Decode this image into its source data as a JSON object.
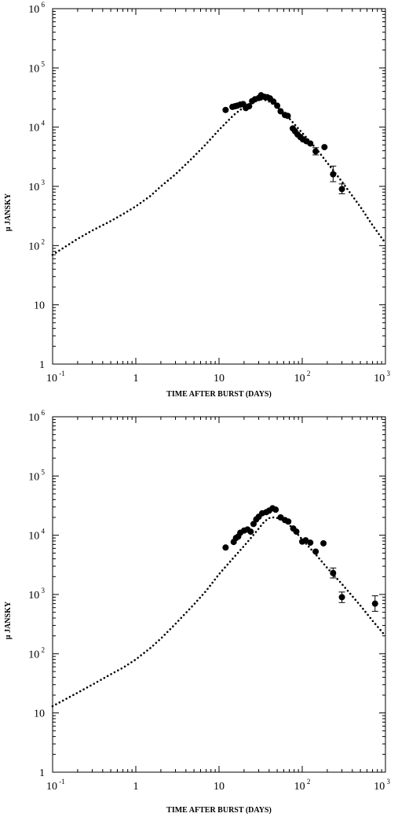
{
  "chart_data": [
    {
      "type": "scatter",
      "xlabel": "TIME AFTER BURST (DAYS)",
      "ylabel": "μ JANSKY",
      "xscale": "log",
      "yscale": "log",
      "xlim": [
        0.1,
        1000
      ],
      "ylim": [
        1,
        1000000
      ],
      "x_ticks": [
        {
          "value": 0.1,
          "base": "10",
          "exp": "-1"
        },
        {
          "value": 1,
          "base": "1",
          "exp": ""
        },
        {
          "value": 10,
          "base": "10",
          "exp": ""
        },
        {
          "value": 100,
          "base": "10",
          "exp": "2"
        },
        {
          "value": 1000,
          "base": "10",
          "exp": "3"
        }
      ],
      "y_ticks": [
        {
          "value": 1,
          "base": "1",
          "exp": ""
        },
        {
          "value": 10,
          "base": "10",
          "exp": ""
        },
        {
          "value": 100,
          "base": "10",
          "exp": "2"
        },
        {
          "value": 1000,
          "base": "10",
          "exp": "3"
        },
        {
          "value": 10000,
          "base": "10",
          "exp": "4"
        },
        {
          "value": 100000,
          "base": "10",
          "exp": "5"
        },
        {
          "value": 1000000,
          "base": "10",
          "exp": "6"
        }
      ],
      "model": {
        "style": "dotted",
        "points": [
          [
            0.1,
            70
          ],
          [
            0.2,
            130
          ],
          [
            0.3,
            180
          ],
          [
            0.5,
            260
          ],
          [
            0.7,
            340
          ],
          [
            1,
            460
          ],
          [
            1.5,
            690
          ],
          [
            2,
            1000
          ],
          [
            3,
            1600
          ],
          [
            5,
            3200
          ],
          [
            7,
            5200
          ],
          [
            10,
            9000
          ],
          [
            15,
            16000
          ],
          [
            20,
            22000
          ],
          [
            25,
            27000
          ],
          [
            30,
            29500
          ],
          [
            35,
            29000
          ],
          [
            40,
            27000
          ],
          [
            50,
            22000
          ],
          [
            70,
            14000
          ],
          [
            100,
            8000
          ],
          [
            150,
            4200
          ],
          [
            200,
            2500
          ],
          [
            300,
            1200
          ],
          [
            500,
            450
          ],
          [
            700,
            220
          ],
          [
            1000,
            110
          ]
        ]
      },
      "observations": [
        {
          "x": 12,
          "y": 19500
        },
        {
          "x": 14.5,
          "y": 22000
        },
        {
          "x": 15.5,
          "y": 22500
        },
        {
          "x": 16.5,
          "y": 23000
        },
        {
          "x": 18,
          "y": 24000
        },
        {
          "x": 19.5,
          "y": 24500
        },
        {
          "x": 21,
          "y": 21000
        },
        {
          "x": 23,
          "y": 22500
        },
        {
          "x": 25,
          "y": 27500
        },
        {
          "x": 27,
          "y": 29500
        },
        {
          "x": 30,
          "y": 31000
        },
        {
          "x": 32,
          "y": 34500
        },
        {
          "x": 35,
          "y": 32500
        },
        {
          "x": 38,
          "y": 32000
        },
        {
          "x": 41,
          "y": 30500
        },
        {
          "x": 45,
          "y": 27000
        },
        {
          "x": 50,
          "y": 23000
        },
        {
          "x": 55,
          "y": 18500
        },
        {
          "x": 62,
          "y": 16000
        },
        {
          "x": 67,
          "y": 15500
        },
        {
          "x": 77,
          "y": 9500
        },
        {
          "x": 82,
          "y": 8500
        },
        {
          "x": 88,
          "y": 7500
        },
        {
          "x": 95,
          "y": 6800
        },
        {
          "x": 102,
          "y": 6200
        },
        {
          "x": 112,
          "y": 5800
        },
        {
          "x": 125,
          "y": 5300
        },
        {
          "x": 145,
          "y": 3900,
          "err": [
            3400,
            4500
          ]
        },
        {
          "x": 185,
          "y": 4600
        },
        {
          "x": 235,
          "y": 1600,
          "err": [
            1200,
            2200
          ]
        },
        {
          "x": 300,
          "y": 900,
          "err": [
            750,
            1100
          ]
        }
      ]
    },
    {
      "type": "scatter",
      "xlabel": "TIME AFTER BURST (DAYS)",
      "ylabel": "μ JANSKY",
      "xscale": "log",
      "yscale": "log",
      "xlim": [
        0.1,
        1000
      ],
      "ylim": [
        1,
        1000000
      ],
      "x_ticks": [
        {
          "value": 0.1,
          "base": "10",
          "exp": "-1"
        },
        {
          "value": 1,
          "base": "1",
          "exp": ""
        },
        {
          "value": 10,
          "base": "10",
          "exp": ""
        },
        {
          "value": 100,
          "base": "10",
          "exp": "2"
        },
        {
          "value": 1000,
          "base": "10",
          "exp": "3"
        }
      ],
      "y_ticks": [
        {
          "value": 1,
          "base": "1",
          "exp": ""
        },
        {
          "value": 10,
          "base": "10",
          "exp": ""
        },
        {
          "value": 100,
          "base": "10",
          "exp": "2"
        },
        {
          "value": 1000,
          "base": "10",
          "exp": "3"
        },
        {
          "value": 10000,
          "base": "10",
          "exp": "4"
        },
        {
          "value": 100000,
          "base": "10",
          "exp": "5"
        },
        {
          "value": 1000000,
          "base": "10",
          "exp": "6"
        }
      ],
      "model": {
        "style": "dotted",
        "points": [
          [
            0.1,
            13
          ],
          [
            0.2,
            22
          ],
          [
            0.3,
            30
          ],
          [
            0.5,
            45
          ],
          [
            0.7,
            58
          ],
          [
            1,
            80
          ],
          [
            1.5,
            125
          ],
          [
            2,
            180
          ],
          [
            3,
            320
          ],
          [
            5,
            680
          ],
          [
            7,
            1150
          ],
          [
            10,
            2200
          ],
          [
            15,
            4200
          ],
          [
            20,
            6600
          ],
          [
            25,
            9500
          ],
          [
            30,
            13000
          ],
          [
            35,
            17000
          ],
          [
            40,
            19500
          ],
          [
            45,
            20000
          ],
          [
            50,
            19500
          ],
          [
            60,
            17500
          ],
          [
            70,
            15000
          ],
          [
            100,
            8500
          ],
          [
            150,
            4500
          ],
          [
            200,
            2800
          ],
          [
            300,
            1500
          ],
          [
            500,
            650
          ],
          [
            700,
            360
          ],
          [
            1000,
            200
          ]
        ]
      },
      "observations": [
        {
          "x": 12,
          "y": 6200
        },
        {
          "x": 15,
          "y": 7700
        },
        {
          "x": 16,
          "y": 9000
        },
        {
          "x": 17,
          "y": 9500
        },
        {
          "x": 18,
          "y": 11000
        },
        {
          "x": 20,
          "y": 12000
        },
        {
          "x": 22,
          "y": 12500
        },
        {
          "x": 24,
          "y": 11500
        },
        {
          "x": 26,
          "y": 15500
        },
        {
          "x": 28,
          "y": 18500
        },
        {
          "x": 30,
          "y": 20500
        },
        {
          "x": 33,
          "y": 23500
        },
        {
          "x": 37,
          "y": 24500
        },
        {
          "x": 40,
          "y": 26000
        },
        {
          "x": 44,
          "y": 28500
        },
        {
          "x": 48,
          "y": 27000
        },
        {
          "x": 55,
          "y": 20000
        },
        {
          "x": 62,
          "y": 18000
        },
        {
          "x": 68,
          "y": 17000
        },
        {
          "x": 78,
          "y": 13000
        },
        {
          "x": 85,
          "y": 11500
        },
        {
          "x": 100,
          "y": 7800
        },
        {
          "x": 110,
          "y": 8200
        },
        {
          "x": 125,
          "y": 7500
        },
        {
          "x": 145,
          "y": 5300
        },
        {
          "x": 180,
          "y": 7300
        },
        {
          "x": 235,
          "y": 2300,
          "err": [
            1900,
            2800
          ]
        },
        {
          "x": 300,
          "y": 900,
          "err": [
            730,
            1100
          ]
        },
        {
          "x": 750,
          "y": 700,
          "err": [
            520,
            950
          ]
        }
      ]
    }
  ]
}
